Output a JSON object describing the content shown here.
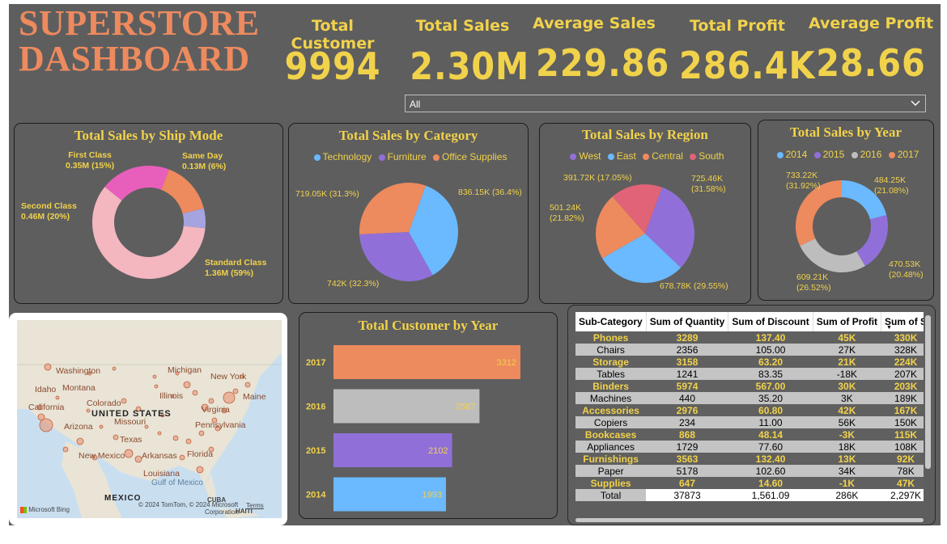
{
  "header": {
    "title_line1": "SUPERSTORE",
    "title_line2": "DASHBOARD"
  },
  "kpis": [
    {
      "label": "Total Customer",
      "value": "9994"
    },
    {
      "label": "Total Sales",
      "value": "2.30M"
    },
    {
      "label": "Average Sales",
      "value": "229.86"
    },
    {
      "label": "Total Profit",
      "value": "286.4K"
    },
    {
      "label": "Average Profit",
      "value": "28.66"
    }
  ],
  "slicer": {
    "selected": "All"
  },
  "colors": {
    "background": "#5e5e5e",
    "accent_yellow": "#f1d24b",
    "title_orange": "#ed8a5e"
  },
  "chart_data": [
    {
      "id": "ship_mode",
      "type": "pie",
      "donut": true,
      "title": "Total Sales by Ship Mode",
      "categories": [
        "Standard Class",
        "Second Class",
        "First Class",
        "Same Day"
      ],
      "values": [
        1.36,
        0.46,
        0.35,
        0.13
      ],
      "unit": "M",
      "colors": [
        "#f4b6bf",
        "#e85fbb",
        "#ed8a5e",
        "#a5a3e0"
      ],
      "labels": [
        {
          "name": "Standard Class",
          "text": "1.36M (59%)"
        },
        {
          "name": "Second Class",
          "text": "0.46M (20%)"
        },
        {
          "name": "First Class",
          "text": "0.35M (15%)"
        },
        {
          "name": "Same Day",
          "text": "0.13M (6%)"
        }
      ]
    },
    {
      "id": "category",
      "type": "pie",
      "title": "Total Sales by Category",
      "categories": [
        "Technology",
        "Furniture",
        "Office Supplies"
      ],
      "values": [
        836.15,
        742,
        719.05
      ],
      "unit": "K",
      "colors": [
        "#6bb9ff",
        "#9070d8",
        "#ed8a5e"
      ],
      "legend": [
        "Technology",
        "Furniture",
        "Office Supplies"
      ],
      "labels": [
        "836.15K (36.4%)",
        "742K (32.3%)",
        "719.05K (31.3%)"
      ]
    },
    {
      "id": "region",
      "type": "pie",
      "title": "Total Sales by Region",
      "categories": [
        "West",
        "East",
        "Central",
        "South"
      ],
      "values": [
        725.46,
        678.78,
        501.24,
        391.72
      ],
      "unit": "K",
      "colors": [
        "#9070d8",
        "#6bb9ff",
        "#ed8a5e",
        "#e06377"
      ],
      "legend": [
        "West",
        "East",
        "Central",
        "South"
      ],
      "labels": [
        {
          "line1": "725.46K",
          "line2": "(31.58%)"
        },
        {
          "line1": "678.78K (29.55%)",
          "line2": ""
        },
        {
          "line1": "501.24K",
          "line2": "(21.82%)"
        },
        {
          "line1": "391.72K (17.05%)",
          "line2": ""
        }
      ]
    },
    {
      "id": "year",
      "type": "pie",
      "donut": true,
      "title": "Total Sales by Year",
      "categories": [
        "2014",
        "2015",
        "2016",
        "2017"
      ],
      "values": [
        484.25,
        470.53,
        609.21,
        733.22
      ],
      "unit": "K",
      "colors": [
        "#6bb9ff",
        "#9070d8",
        "#bdbdbd",
        "#ed8a5e"
      ],
      "legend": [
        "2014",
        "2015",
        "2016",
        "2017"
      ],
      "labels": [
        {
          "line1": "484.25K",
          "line2": "(21.08%)"
        },
        {
          "line1": "470.53K",
          "line2": "(20.48%)"
        },
        {
          "line1": "609.21K",
          "line2": "(26.52%)"
        },
        {
          "line1": "733.22K",
          "line2": "(31.92%)"
        }
      ]
    },
    {
      "id": "customer_year",
      "type": "bar",
      "orientation": "horizontal",
      "title": "Total Customer by Year",
      "categories": [
        "2017",
        "2016",
        "2015",
        "2014"
      ],
      "values": [
        3312,
        2587,
        2102,
        1993
      ],
      "colors": [
        "#ed8a5e",
        "#bdbdbd",
        "#9070d8",
        "#6bb9ff"
      ],
      "xlim": [
        0,
        3700
      ]
    }
  ],
  "map": {
    "states": [
      "Washington",
      "Montana",
      "Idaho",
      "California",
      "Colorado",
      "Illinois",
      "Michigan",
      "New York",
      "Maine",
      "Virginia",
      "Pennsylvania",
      "Missouri",
      "Texas",
      "Arizona",
      "New Mexico",
      "Arkansas",
      "Florida",
      "Louisiana"
    ],
    "country": "UNITED STATES",
    "neighbor": "MEXICO",
    "water": "Gulf of Mexico",
    "brand": "Microsoft Bing",
    "copyright": "© 2024 TomTom, © 2024 Microsoft",
    "corporation": "Corporation",
    "terms": "Terms",
    "cuba": "CUBA",
    "haiti": "HAITI"
  },
  "table": {
    "columns": [
      "Sub-Category",
      "Sum of Quantity",
      "Sum of Discount",
      "Sum of Profit",
      "Sum of S"
    ],
    "rows": [
      [
        "Phones",
        "3289",
        "137.40",
        "45K",
        "330K"
      ],
      [
        "Chairs",
        "2356",
        "105.00",
        "27K",
        "328K"
      ],
      [
        "Storage",
        "3158",
        "63.20",
        "21K",
        "224K"
      ],
      [
        "Tables",
        "1241",
        "83.35",
        "-18K",
        "207K"
      ],
      [
        "Binders",
        "5974",
        "567.00",
        "30K",
        "203K"
      ],
      [
        "Machines",
        "440",
        "35.20",
        "3K",
        "189K"
      ],
      [
        "Accessories",
        "2976",
        "60.80",
        "42K",
        "167K"
      ],
      [
        "Copiers",
        "234",
        "11.00",
        "56K",
        "150K"
      ],
      [
        "Bookcases",
        "868",
        "48.14",
        "-3K",
        "115K"
      ],
      [
        "Appliances",
        "1729",
        "77.60",
        "18K",
        "108K"
      ],
      [
        "Furnishings",
        "3563",
        "132.40",
        "13K",
        "92K"
      ],
      [
        "Paper",
        "5178",
        "102.60",
        "34K",
        "78K"
      ],
      [
        "Supplies",
        "647",
        "14.60",
        "-1K",
        "47K"
      ]
    ],
    "total": [
      "Total",
      "37873",
      "1,561.09",
      "286K",
      "2,297K"
    ]
  }
}
